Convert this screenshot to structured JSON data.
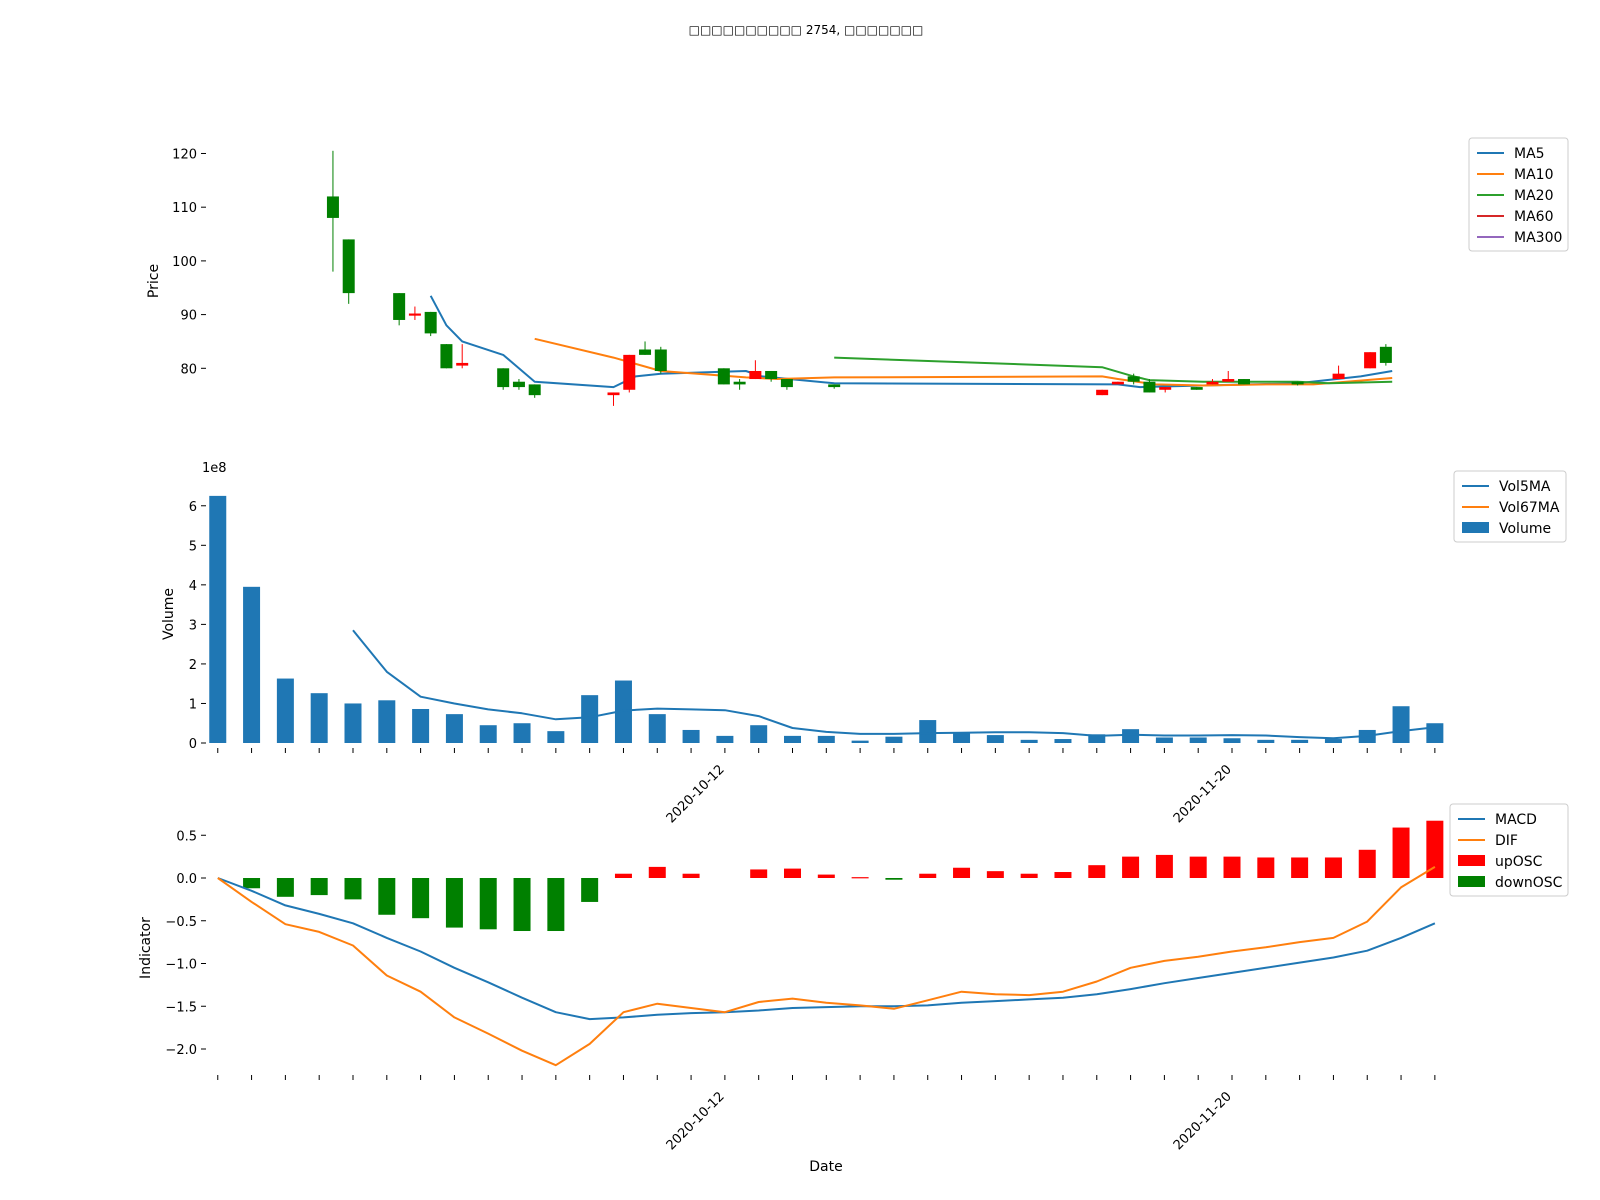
{
  "title": "□□□□□□□□□□ 2754, □□□□□□□",
  "colors": {
    "up": "#ff0000",
    "down": "#008000",
    "ma5": "#1f77b4",
    "ma10": "#ff7f0e",
    "ma20": "#2ca02c",
    "ma60": "#d62728",
    "ma300": "#9467bd",
    "volume": "#1f77b4",
    "vol5ma": "#1f77b4",
    "vol67ma": "#ff7f0e",
    "macd": "#1f77b4",
    "dif": "#ff7f0e"
  },
  "chart_data": [
    {
      "type": "candlestick",
      "ylabel": "Price",
      "yticks": [
        80,
        90,
        100,
        110,
        120
      ],
      "ylim": [
        70,
        124
      ],
      "xlim": [
        -0.5,
        38.2
      ],
      "legend": {
        "placement": "right",
        "entries": [
          "MA5",
          "MA10",
          "MA20",
          "MA60",
          "MA300"
        ]
      },
      "candles": [
        {
          "x": 3.4,
          "open": 112,
          "close": 108,
          "high": 120.5,
          "low": 98
        },
        {
          "x": 3.9,
          "open": 104,
          "close": 94,
          "high": 104,
          "low": 92
        },
        {
          "x": 5.5,
          "open": 94,
          "close": 89,
          "high": 94,
          "low": 88
        },
        {
          "x": 6.0,
          "open": 89.8,
          "close": 90.2,
          "high": 91.5,
          "low": 89
        },
        {
          "x": 6.5,
          "open": 90.5,
          "close": 86.5,
          "high": 90.5,
          "low": 86
        },
        {
          "x": 7.0,
          "open": 84.5,
          "close": 80,
          "high": 84.5,
          "low": 80
        },
        {
          "x": 7.5,
          "open": 80.5,
          "close": 81,
          "high": 84.5,
          "low": 80
        },
        {
          "x": 8.8,
          "open": 80,
          "close": 76.5,
          "high": 80,
          "low": 76
        },
        {
          "x": 9.3,
          "open": 77.5,
          "close": 76.5,
          "high": 78,
          "low": 76
        },
        {
          "x": 9.8,
          "open": 77,
          "close": 75,
          "high": 77,
          "low": 74.5
        },
        {
          "x": 12.3,
          "open": 75,
          "close": 75.5,
          "high": 75.5,
          "low": 73
        },
        {
          "x": 12.8,
          "open": 76,
          "close": 82.5,
          "high": 82.5,
          "low": 75.5
        },
        {
          "x": 13.3,
          "open": 83.5,
          "close": 82.5,
          "high": 85,
          "low": 82.5
        },
        {
          "x": 13.8,
          "open": 83.5,
          "close": 79.5,
          "high": 84,
          "low": 79
        },
        {
          "x": 15.8,
          "open": 80,
          "close": 77,
          "high": 80,
          "low": 77
        },
        {
          "x": 16.3,
          "open": 77.5,
          "close": 77,
          "high": 78,
          "low": 76
        },
        {
          "x": 16.8,
          "open": 78,
          "close": 79.5,
          "high": 81.5,
          "low": 78
        },
        {
          "x": 17.3,
          "open": 79.5,
          "close": 78,
          "high": 79.5,
          "low": 77.5
        },
        {
          "x": 17.8,
          "open": 78,
          "close": 76.5,
          "high": 78,
          "low": 76
        },
        {
          "x": 19.3,
          "open": 77,
          "close": 76.5,
          "high": 77,
          "low": 76.2
        },
        {
          "x": 27.8,
          "open": 75,
          "close": 76,
          "high": 76,
          "low": 75
        },
        {
          "x": 28.3,
          "open": 77,
          "close": 77.5,
          "high": 77.5,
          "low": 77
        },
        {
          "x": 28.8,
          "open": 78.5,
          "close": 77.5,
          "high": 79,
          "low": 77
        },
        {
          "x": 29.3,
          "open": 77.5,
          "close": 75.5,
          "high": 78,
          "low": 75.5
        },
        {
          "x": 29.8,
          "open": 76,
          "close": 76.5,
          "high": 76.5,
          "low": 75.5
        },
        {
          "x": 30.8,
          "open": 76.5,
          "close": 76,
          "high": 76.5,
          "low": 76
        },
        {
          "x": 31.3,
          "open": 77,
          "close": 77.5,
          "high": 78,
          "low": 77
        },
        {
          "x": 31.8,
          "open": 77.5,
          "close": 78,
          "high": 79.5,
          "low": 77.5
        },
        {
          "x": 32.3,
          "open": 78,
          "close": 77,
          "high": 78,
          "low": 77
        },
        {
          "x": 34.0,
          "open": 77.5,
          "close": 77,
          "high": 77.5,
          "low": 76.8
        },
        {
          "x": 35.3,
          "open": 78,
          "close": 79,
          "high": 80.5,
          "low": 78
        },
        {
          "x": 36.3,
          "open": 80,
          "close": 83,
          "high": 83,
          "low": 80
        },
        {
          "x": 36.8,
          "open": 84,
          "close": 81,
          "high": 84.5,
          "low": 80.5
        }
      ],
      "series": [
        {
          "name": "MA5",
          "color": "ma5",
          "points": [
            [
              6.5,
              93.5
            ],
            [
              7.0,
              88
            ],
            [
              7.5,
              85
            ],
            [
              8.8,
              82.5
            ],
            [
              9.8,
              77.5
            ],
            [
              12.3,
              76.5
            ],
            [
              13.0,
              78.5
            ],
            [
              13.8,
              79
            ],
            [
              16.5,
              79.5
            ],
            [
              17.0,
              78.5
            ],
            [
              19.3,
              77.2
            ],
            [
              28.3,
              77
            ],
            [
              29.0,
              76.5
            ],
            [
              31.0,
              76.8
            ],
            [
              34.0,
              77.2
            ],
            [
              36.0,
              78.5
            ],
            [
              37.0,
              79.5
            ]
          ]
        },
        {
          "name": "MA10",
          "color": "ma10",
          "points": [
            [
              9.8,
              85.5
            ],
            [
              12.3,
              82
            ],
            [
              13.8,
              79.5
            ],
            [
              16.5,
              78.3
            ],
            [
              17.5,
              78
            ],
            [
              19.3,
              78.3
            ],
            [
              27.8,
              78.5
            ],
            [
              28.3,
              78
            ],
            [
              29.5,
              77
            ],
            [
              31.0,
              76.8
            ],
            [
              33.0,
              77
            ],
            [
              34.5,
              77
            ],
            [
              37.0,
              78.2
            ]
          ]
        },
        {
          "name": "MA20",
          "color": "ma20",
          "points": [
            [
              19.3,
              82
            ],
            [
              27.8,
              80.2
            ],
            [
              28.8,
              78.5
            ],
            [
              29.3,
              77.8
            ],
            [
              31.0,
              77.5
            ],
            [
              34.0,
              77.5
            ],
            [
              35.0,
              77.2
            ],
            [
              37.0,
              77.5
            ]
          ]
        },
        {
          "name": "MA60",
          "color": "ma60",
          "points": []
        },
        {
          "name": "MA300",
          "color": "ma300",
          "points": []
        }
      ]
    },
    {
      "type": "bar",
      "ylabel": "Volume",
      "yticks": [
        0,
        1,
        2,
        3,
        4,
        5,
        6
      ],
      "ylim": [
        0,
        6.5
      ],
      "scale_label": "1e8",
      "xlim": [
        -0.2,
        36.3
      ],
      "xtick_labels": [
        {
          "x": 15,
          "label": "2020-10-12"
        },
        {
          "x": 30,
          "label": "2020-11-20"
        }
      ],
      "legend": {
        "placement": "right",
        "entries": [
          "Vol5MA",
          "Vol67MA",
          "Volume"
        ]
      },
      "bars": [
        6.25,
        3.95,
        1.63,
        1.26,
        1.0,
        1.08,
        0.86,
        0.73,
        0.45,
        0.5,
        0.3,
        1.21,
        1.58,
        0.73,
        0.33,
        0.18,
        0.45,
        0.18,
        0.18,
        0.06,
        0.16,
        0.58,
        0.25,
        0.2,
        0.08,
        0.1,
        0.22,
        0.35,
        0.14,
        0.14,
        0.12,
        0.08,
        0.08,
        0.1,
        0.33,
        0.93,
        0.5
      ],
      "series": [
        {
          "name": "Vol5MA",
          "color": "vol5ma",
          "points": [
            [
              4,
              2.85
            ],
            [
              5,
              1.8
            ],
            [
              6,
              1.17
            ],
            [
              7,
              1.0
            ],
            [
              8,
              0.85
            ],
            [
              9,
              0.75
            ],
            [
              10,
              0.6
            ],
            [
              11,
              0.65
            ],
            [
              12,
              0.82
            ],
            [
              13,
              0.87
            ],
            [
              14,
              0.85
            ],
            [
              15,
              0.83
            ],
            [
              16,
              0.68
            ],
            [
              17,
              0.38
            ],
            [
              18,
              0.28
            ],
            [
              19,
              0.23
            ],
            [
              20,
              0.23
            ],
            [
              21,
              0.25
            ],
            [
              22,
              0.26
            ],
            [
              23,
              0.27
            ],
            [
              24,
              0.27
            ],
            [
              25,
              0.25
            ],
            [
              26,
              0.18
            ],
            [
              27,
              0.21
            ],
            [
              28,
              0.19
            ],
            [
              29,
              0.19
            ],
            [
              30,
              0.2
            ],
            [
              31,
              0.19
            ],
            [
              32,
              0.15
            ],
            [
              33,
              0.12
            ],
            [
              34,
              0.18
            ],
            [
              35,
              0.3
            ],
            [
              36,
              0.4
            ]
          ]
        },
        {
          "name": "Vol67MA",
          "color": "vol67ma",
          "points": []
        }
      ]
    },
    {
      "type": "bar+line",
      "ylabel": "Indicator",
      "xlabel": "Date",
      "yticks": [
        -2.0,
        -1.5,
        -1.0,
        -0.5,
        0.0,
        0.5
      ],
      "ylim": [
        -2.3,
        0.72
      ],
      "xlim": [
        -0.2,
        36.3
      ],
      "xtick_labels": [
        {
          "x": 15,
          "label": "2020-10-12"
        },
        {
          "x": 30,
          "label": "2020-11-20"
        }
      ],
      "legend": {
        "placement": "right",
        "entries": [
          "MACD",
          "DIF",
          "upOSC",
          "downOSC"
        ]
      },
      "osc": [
        0,
        -0.12,
        -0.22,
        -0.2,
        -0.25,
        -0.43,
        -0.47,
        -0.58,
        -0.6,
        -0.62,
        -0.62,
        -0.28,
        0.05,
        0.13,
        0.05,
        0,
        0.1,
        0.11,
        0.04,
        0.01,
        -0.02,
        0.05,
        0.12,
        0.08,
        0.05,
        0.07,
        0.15,
        0.25,
        0.27,
        0.25,
        0.25,
        0.24,
        0.24,
        0.24,
        0.33,
        0.59,
        0.67
      ],
      "series": [
        {
          "name": "MACD",
          "color": "macd",
          "values": [
            0,
            -0.15,
            -0.32,
            -0.42,
            -0.53,
            -0.7,
            -0.86,
            -1.05,
            -1.22,
            -1.4,
            -1.57,
            -1.65,
            -1.63,
            -1.6,
            -1.58,
            -1.57,
            -1.55,
            -1.52,
            -1.51,
            -1.5,
            -1.5,
            -1.49,
            -1.46,
            -1.44,
            -1.42,
            -1.4,
            -1.36,
            -1.3,
            -1.23,
            -1.17,
            -1.11,
            -1.05,
            -0.99,
            -0.93,
            -0.85,
            -0.7,
            -0.53
          ]
        },
        {
          "name": "DIF",
          "color": "dif",
          "values": [
            0,
            -0.28,
            -0.54,
            -0.63,
            -0.79,
            -1.14,
            -1.33,
            -1.63,
            -1.82,
            -2.02,
            -2.19,
            -1.94,
            -1.57,
            -1.47,
            -1.52,
            -1.57,
            -1.45,
            -1.41,
            -1.46,
            -1.49,
            -1.53,
            -1.43,
            -1.33,
            -1.36,
            -1.37,
            -1.33,
            -1.21,
            -1.05,
            -0.97,
            -0.92,
            -0.86,
            -0.81,
            -0.75,
            -0.7,
            -0.51,
            -0.11,
            0.13
          ]
        }
      ]
    }
  ]
}
